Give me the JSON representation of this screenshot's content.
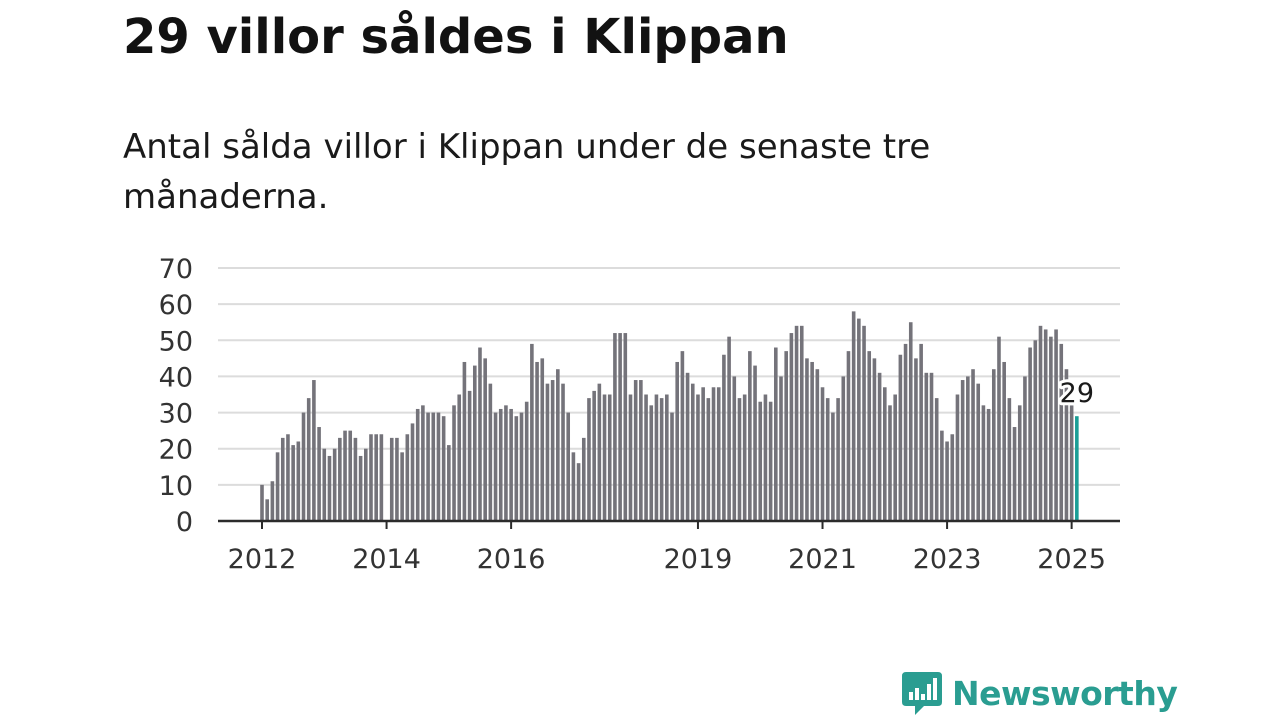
{
  "title": "29 villor såldes i Klippan",
  "subtitle": "Antal sålda villor i Klippan under de senaste tre månaderna.",
  "brand": {
    "name": "Newsworthy",
    "icon": "newsworthy-logo-icon",
    "color": "#2a9d91"
  },
  "chart_data": {
    "type": "bar",
    "ylim": [
      0,
      70
    ],
    "yticks": [
      0,
      10,
      20,
      30,
      40,
      50,
      60,
      70
    ],
    "xticks": [
      "2012",
      "2014",
      "2016",
      "2019",
      "2021",
      "2023",
      "2025"
    ],
    "grid": true,
    "bar_color": "#74737a",
    "highlight_color": "#1a9e96",
    "start": "2012-01",
    "values": [
      10,
      6,
      11,
      19,
      23,
      24,
      21,
      22,
      30,
      34,
      39,
      26,
      20,
      18,
      20,
      23,
      25,
      25,
      23,
      18,
      20,
      24,
      24,
      24,
      null,
      23,
      23,
      19,
      24,
      27,
      31,
      32,
      30,
      30,
      30,
      29,
      21,
      32,
      35,
      44,
      36,
      43,
      48,
      45,
      38,
      30,
      31,
      32,
      31,
      29,
      30,
      33,
      49,
      44,
      45,
      38,
      39,
      42,
      38,
      30,
      19,
      16,
      23,
      34,
      36,
      38,
      35,
      35,
      52,
      52,
      52,
      35,
      39,
      39,
      35,
      32,
      35,
      34,
      35,
      30,
      44,
      47,
      41,
      38,
      35,
      37,
      34,
      37,
      37,
      46,
      51,
      40,
      34,
      35,
      47,
      43,
      33,
      35,
      33,
      48,
      40,
      47,
      52,
      54,
      54,
      45,
      44,
      42,
      37,
      34,
      30,
      34,
      40,
      47,
      58,
      56,
      54,
      47,
      45,
      41,
      37,
      32,
      35,
      46,
      49,
      55,
      45,
      49,
      41,
      41,
      34,
      25,
      22,
      24,
      35,
      39,
      40,
      42,
      38,
      32,
      31,
      42,
      51,
      44,
      34,
      26,
      32,
      40,
      48,
      50,
      54,
      53,
      51,
      53,
      49,
      42,
      32,
      29
    ],
    "highlight_label": "29"
  }
}
